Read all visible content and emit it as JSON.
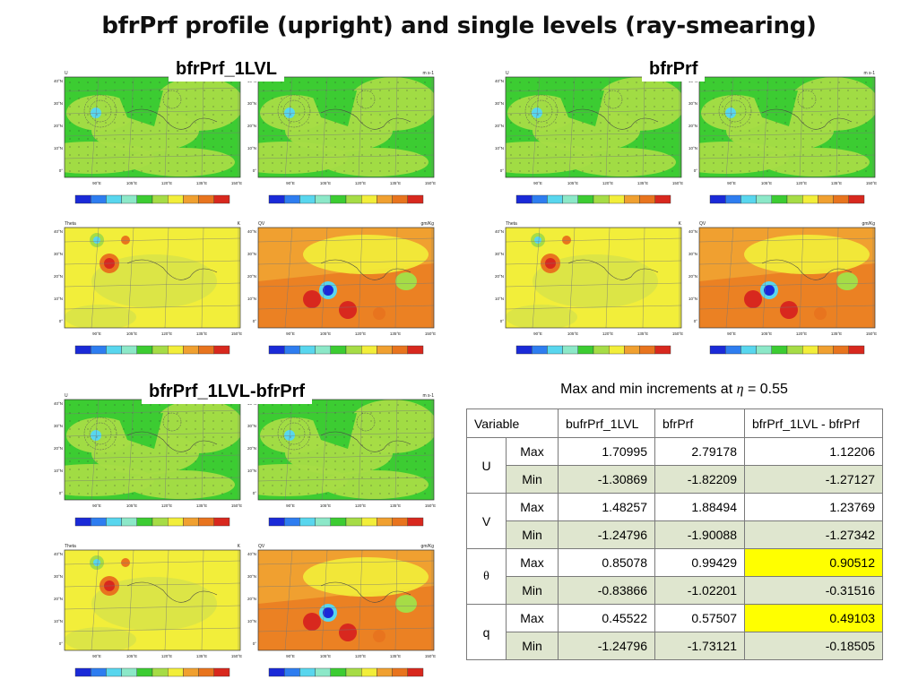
{
  "title": "bfrPrf profile (upright) and single levels (ray-smearing)",
  "groups": [
    {
      "label": "bfrPrf_1LVL"
    },
    {
      "label": "bfrPrf"
    },
    {
      "label": "bfrPrf_1LVL-bfrPrf"
    }
  ],
  "panels": {
    "u_label": "U",
    "v_label": "V",
    "theta_label": "Theta",
    "qv_label": "QV",
    "u_units": "m s-1",
    "theta_units": "K",
    "qv_units": "gm/Kg",
    "lat_ticks": [
      "40°N",
      "30°N",
      "20°N",
      "10°N",
      "0°"
    ],
    "lon_ticks": [
      "90°E",
      "105°E",
      "120°E",
      "135°E",
      "150°E"
    ]
  },
  "table": {
    "caption_prefix": "Max and min increments at",
    "caption_symbol": "η",
    "caption_suffix": "= 0.55",
    "headers": [
      "Variable",
      "bufrPrf_1LVL",
      "bfrPrf",
      "bfrPrf_1LVL - bfrPrf"
    ],
    "variables": [
      {
        "name": "U",
        "max": [
          "1.70995",
          "2.79178",
          "1.12206"
        ],
        "min": [
          "-1.30869",
          "-1.82209",
          "-1.27127"
        ]
      },
      {
        "name": "V",
        "max": [
          "1.48257",
          "1.88494",
          "1.23769"
        ],
        "min": [
          "-1.24796",
          "-1.90088",
          "-1.27342"
        ]
      },
      {
        "name": "θ",
        "max": [
          "0.85078",
          "0.99429",
          "0.90512"
        ],
        "min": [
          "-0.83866",
          "-1.02201",
          "-0.31516"
        ]
      },
      {
        "name": "q",
        "max": [
          "0.45522",
          "0.57507",
          "0.49103"
        ],
        "min": [
          "-1.24796",
          "-1.73121",
          "-0.18505"
        ]
      }
    ],
    "stat_max": "Max",
    "stat_min": "Min",
    "highlight_color": "#ffff00"
  },
  "colors": {
    "ocean_green": "#3ccc32",
    "light_green": "#a6dc46",
    "yellow": "#f2ee3a",
    "orange": "#f0a030",
    "dark_orange": "#e8741e",
    "red": "#d8281e",
    "blue": "#1a2ad8",
    "cyan": "#58d6ee"
  }
}
